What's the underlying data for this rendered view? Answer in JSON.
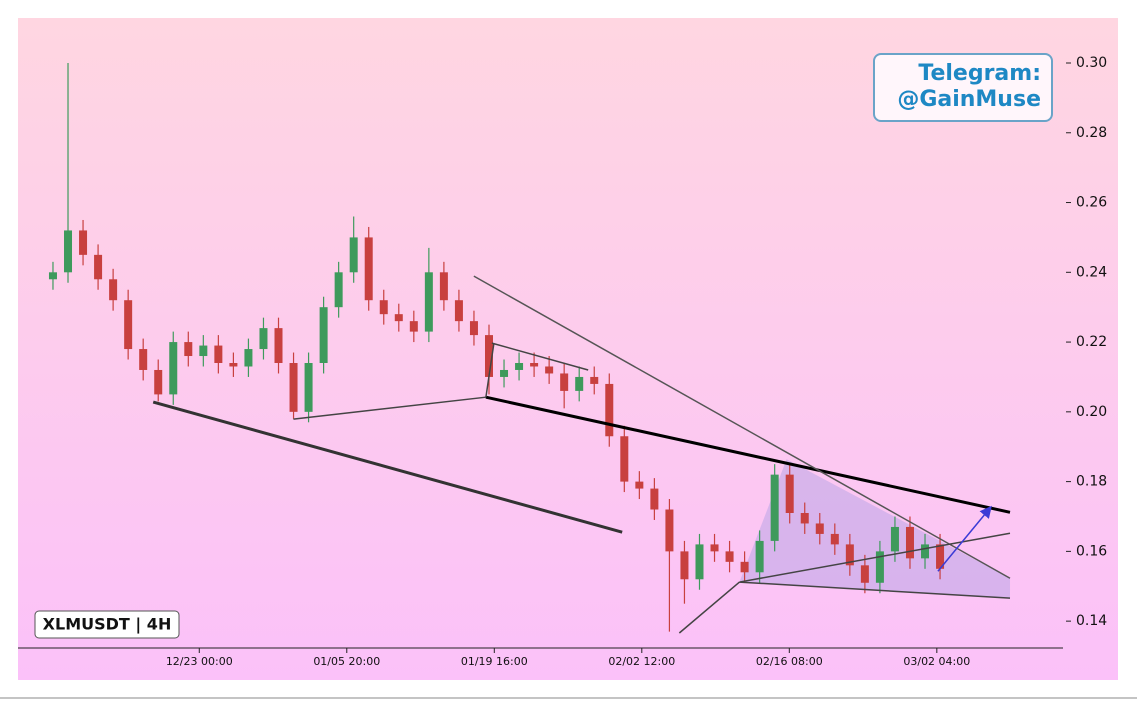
{
  "chart_data": {
    "type": "candlestick",
    "badge": "XLMUSDT | 4H",
    "watermark": [
      "Telegram:",
      "@GainMuse"
    ],
    "up_color": "#3e9a5c",
    "down_color": "#c8403f",
    "xlim": [
      -17.0,
      81.0
    ],
    "ylim": [
      0.1323,
      0.3129
    ],
    "yticks": [
      0.14,
      0.16,
      0.18,
      {
        "value": 0.2,
        "label": "0.20"
      },
      0.22,
      0.24,
      0.26,
      0.28,
      {
        "value": 0.3,
        "label": "0.30"
      }
    ],
    "xticks": [
      {
        "value": 0,
        "label": "12/23 00:00"
      },
      {
        "value": 13.833,
        "label": "01/05 20:00"
      },
      {
        "value": 27.667,
        "label": "01/19 16:00"
      },
      {
        "value": 41.5,
        "label": "02/02 12:00"
      },
      {
        "value": 55.333,
        "label": "02/16 08:00"
      },
      {
        "value": 69.167,
        "label": "03/02 04:00"
      }
    ],
    "x": [
      -13.72,
      -12.31,
      -10.9,
      -9.49,
      -8.08,
      -6.67,
      -5.26,
      -3.85,
      -2.44,
      -1.03,
      0.38,
      1.79,
      3.2,
      4.61,
      6.02,
      7.43,
      8.84,
      10.25,
      11.66,
      13.07,
      14.48,
      15.89,
      17.3,
      18.71,
      20.12,
      21.53,
      22.94,
      24.35,
      25.76,
      27.17,
      28.58,
      29.99,
      31.4,
      32.81,
      34.22,
      35.63,
      37.04,
      38.45,
      39.86,
      41.27,
      42.68,
      44.09,
      45.5,
      46.91,
      48.32,
      49.73,
      51.14,
      52.55,
      53.96,
      55.37,
      56.78,
      58.19,
      59.6,
      61.01,
      62.42,
      63.83,
      65.24,
      66.65,
      68.06,
      69.47
    ],
    "open": [
      0.238,
      0.24,
      0.252,
      0.245,
      0.238,
      0.232,
      0.218,
      0.212,
      0.205,
      0.22,
      0.216,
      0.219,
      0.214,
      0.213,
      0.218,
      0.224,
      0.214,
      0.2,
      0.214,
      0.23,
      0.24,
      0.25,
      0.232,
      0.228,
      0.226,
      0.223,
      0.24,
      0.232,
      0.226,
      0.222,
      0.21,
      0.212,
      0.214,
      0.213,
      0.211,
      0.206,
      0.21,
      0.208,
      0.193,
      0.18,
      0.178,
      0.172,
      0.16,
      0.152,
      0.162,
      0.16,
      0.157,
      0.154,
      0.163,
      0.182,
      0.171,
      0.168,
      0.165,
      0.162,
      0.156,
      0.151,
      0.16,
      0.167,
      0.158,
      0.162
    ],
    "high": [
      0.243,
      0.3,
      0.255,
      0.248,
      0.241,
      0.235,
      0.221,
      0.215,
      0.223,
      0.223,
      0.222,
      0.222,
      0.217,
      0.221,
      0.227,
      0.227,
      0.217,
      0.217,
      0.233,
      0.243,
      0.256,
      0.253,
      0.235,
      0.231,
      0.229,
      0.247,
      0.243,
      0.235,
      0.229,
      0.225,
      0.215,
      0.217,
      0.217,
      0.216,
      0.214,
      0.213,
      0.213,
      0.211,
      0.196,
      0.183,
      0.181,
      0.175,
      0.163,
      0.165,
      0.165,
      0.163,
      0.16,
      0.166,
      0.185,
      0.185,
      0.174,
      0.171,
      0.168,
      0.165,
      0.159,
      0.163,
      0.17,
      0.17,
      0.165,
      0.165
    ],
    "low": [
      0.235,
      0.237,
      0.242,
      0.235,
      0.229,
      0.215,
      0.209,
      0.203,
      0.202,
      0.213,
      0.213,
      0.211,
      0.21,
      0.21,
      0.215,
      0.211,
      0.198,
      0.197,
      0.211,
      0.227,
      0.237,
      0.229,
      0.225,
      0.223,
      0.22,
      0.22,
      0.229,
      0.223,
      0.219,
      0.205,
      0.207,
      0.209,
      0.21,
      0.208,
      0.201,
      0.203,
      0.205,
      0.19,
      0.177,
      0.175,
      0.169,
      0.137,
      0.145,
      0.149,
      0.157,
      0.154,
      0.151,
      0.151,
      0.16,
      0.168,
      0.165,
      0.162,
      0.159,
      0.153,
      0.148,
      0.148,
      0.157,
      0.155,
      0.155,
      0.152
    ],
    "close": [
      0.24,
      0.252,
      0.245,
      0.238,
      0.232,
      0.218,
      0.212,
      0.205,
      0.22,
      0.216,
      0.219,
      0.214,
      0.213,
      0.218,
      0.224,
      0.214,
      0.2,
      0.214,
      0.23,
      0.24,
      0.25,
      0.232,
      0.228,
      0.226,
      0.223,
      0.24,
      0.232,
      0.226,
      0.222,
      0.21,
      0.212,
      0.214,
      0.213,
      0.211,
      0.206,
      0.21,
      0.208,
      0.193,
      0.18,
      0.178,
      0.172,
      0.16,
      0.152,
      0.162,
      0.16,
      0.157,
      0.154,
      0.163,
      0.182,
      0.171,
      0.168,
      0.165,
      0.162,
      0.156,
      0.151,
      0.16,
      0.167,
      0.158,
      0.162,
      0.155
    ],
    "shade": {
      "color": "#b9a6e6",
      "points": [
        [
          55.08,
          0.1864
        ],
        [
          50.66,
          0.1512
        ],
        [
          76.03,
          0.1466
        ],
        [
          76.03,
          0.1523
        ]
      ]
    },
    "trendlines": [
      {
        "color": "#333333",
        "width": 3,
        "points": [
          [
            -4.32,
            0.2028
          ],
          [
            39.66,
            0.1655
          ]
        ]
      },
      {
        "color": "#444444",
        "width": 1.5,
        "points": [
          [
            8.83,
            0.1979
          ],
          [
            26.88,
            0.2042
          ]
        ]
      },
      {
        "color": "#000000",
        "width": 3,
        "points": [
          [
            26.88,
            0.2042
          ],
          [
            76.03,
            0.1712
          ]
        ]
      },
      {
        "color": "#555555",
        "width": 1.5,
        "points": [
          [
            25.75,
            0.2389
          ],
          [
            76.03,
            0.1523
          ]
        ]
      },
      {
        "color": "#444444",
        "width": 1.5,
        "points": [
          [
            27.44,
            0.2197
          ],
          [
            36.47,
            0.212
          ]
        ]
      },
      {
        "color": "#444444",
        "width": 1.5,
        "points": [
          [
            26.88,
            0.2042
          ],
          [
            27.63,
            0.2197
          ]
        ]
      },
      {
        "color": "#444444",
        "width": 1.5,
        "points": [
          [
            45.02,
            0.1366
          ],
          [
            50.66,
            0.1512
          ]
        ]
      },
      {
        "color": "#444444",
        "width": 1.5,
        "points": [
          [
            50.66,
            0.1512
          ],
          [
            76.03,
            0.1466
          ]
        ]
      },
      {
        "color": "#444444",
        "width": 1.5,
        "points": [
          [
            50.66,
            0.1512
          ],
          [
            76.03,
            0.1652
          ]
        ]
      }
    ],
    "arrow": {
      "color": "#3b3bd6",
      "points": [
        [
          69.27,
          0.1543
        ],
        [
          74.15,
          0.1724
        ]
      ]
    }
  }
}
